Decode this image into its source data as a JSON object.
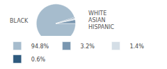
{
  "chart_data": {
    "type": "pie",
    "categories": [
      "BLACK",
      "WHITE",
      "ASIAN",
      "HISPANIC"
    ],
    "values": [
      94.8,
      3.2,
      1.4,
      0.6
    ],
    "value_labels": [
      "94.8%",
      "3.2%",
      "1.4%",
      "0.6%"
    ],
    "colors": [
      "#a6bccd",
      "#7a97b0",
      "#d4dee6",
      "#2e5a7e"
    ],
    "legend": "bottom"
  }
}
